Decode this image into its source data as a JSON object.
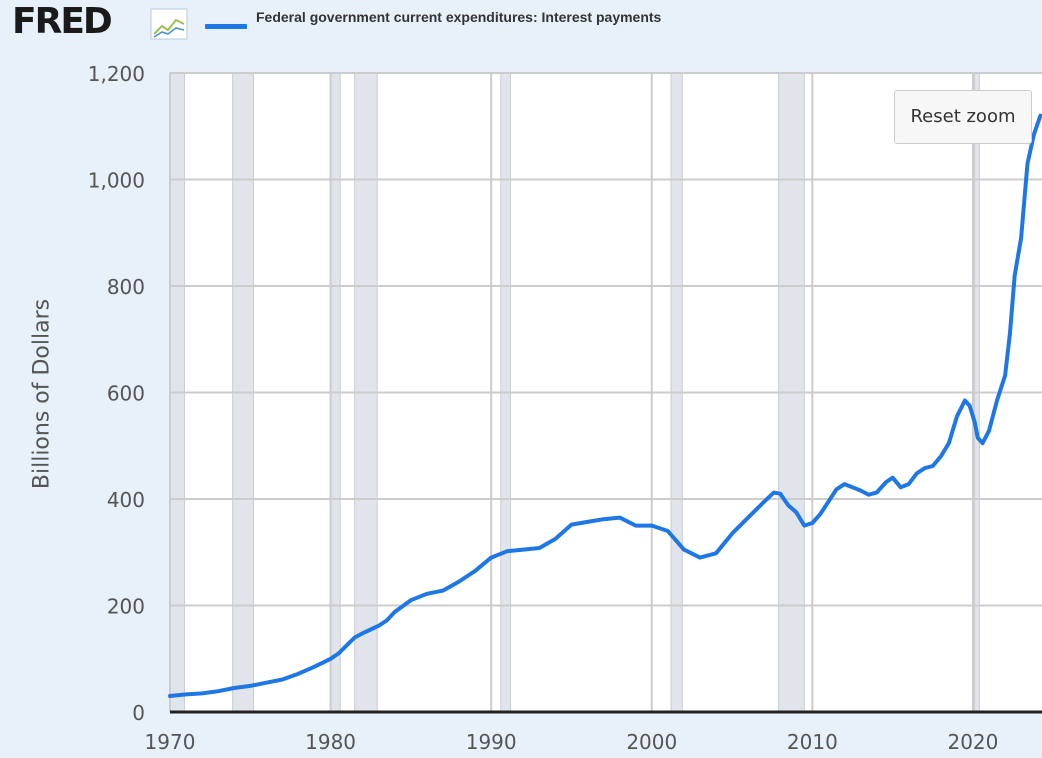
{
  "header": {
    "logo_text": "FRED",
    "logo_icon": "fred-chart-logo-icon",
    "legend_label": "Federal government current expenditures: Interest payments"
  },
  "controls": {
    "reset_zoom_label": "Reset zoom"
  },
  "colors": {
    "background": "#e8f0f9",
    "plot_background": "#ffffff",
    "series": "#1f77e6",
    "gridline": "#cccccc",
    "recession_shade": "#e1e5eb"
  },
  "chart_data": {
    "type": "line",
    "title": "",
    "xlabel": "",
    "ylabel": "Billions of Dollars",
    "xlim": [
      1970,
      2024.3
    ],
    "ylim": [
      0,
      1200
    ],
    "grid": true,
    "legend_position": "top-left",
    "y_ticks": [
      {
        "value": 0,
        "label": "0"
      },
      {
        "value": 200,
        "label": "200"
      },
      {
        "value": 400,
        "label": "400"
      },
      {
        "value": 600,
        "label": "600"
      },
      {
        "value": 800,
        "label": "800"
      },
      {
        "value": 1000,
        "label": "1,000"
      },
      {
        "value": 1200,
        "label": "1,200"
      }
    ],
    "x_ticks": [
      {
        "value": 1970,
        "label": "1970"
      },
      {
        "value": 1980,
        "label": "1980"
      },
      {
        "value": 1990,
        "label": "1990"
      },
      {
        "value": 2000,
        "label": "2000"
      },
      {
        "value": 2010,
        "label": "2010"
      },
      {
        "value": 2020,
        "label": "2020"
      }
    ],
    "recession_bands": [
      [
        1970.0,
        1970.9
      ],
      [
        1973.9,
        1975.2
      ],
      [
        1980.0,
        1980.6
      ],
      [
        1981.5,
        1982.9
      ],
      [
        1990.6,
        1991.2
      ],
      [
        2001.2,
        2001.9
      ],
      [
        2007.9,
        2009.5
      ],
      [
        2020.1,
        2020.4
      ]
    ],
    "series": [
      {
        "name": "Federal government current expenditures: Interest payments",
        "points": [
          [
            1970.0,
            30
          ],
          [
            1971.0,
            33
          ],
          [
            1972.0,
            35
          ],
          [
            1973.0,
            39
          ],
          [
            1974.0,
            45
          ],
          [
            1975.0,
            49
          ],
          [
            1976.0,
            55
          ],
          [
            1977.0,
            61
          ],
          [
            1978.0,
            72
          ],
          [
            1979.0,
            85
          ],
          [
            1980.0,
            100
          ],
          [
            1980.5,
            110
          ],
          [
            1981.0,
            125
          ],
          [
            1981.5,
            140
          ],
          [
            1982.0,
            148
          ],
          [
            1982.5,
            155
          ],
          [
            1983.0,
            162
          ],
          [
            1983.5,
            172
          ],
          [
            1984.0,
            188
          ],
          [
            1985.0,
            210
          ],
          [
            1986.0,
            222
          ],
          [
            1987.0,
            228
          ],
          [
            1988.0,
            245
          ],
          [
            1989.0,
            265
          ],
          [
            1990.0,
            290
          ],
          [
            1991.0,
            302
          ],
          [
            1992.0,
            305
          ],
          [
            1993.0,
            308
          ],
          [
            1994.0,
            325
          ],
          [
            1995.0,
            352
          ],
          [
            1996.0,
            357
          ],
          [
            1997.0,
            362
          ],
          [
            1998.0,
            365
          ],
          [
            1999.0,
            350
          ],
          [
            2000.0,
            350
          ],
          [
            2001.0,
            340
          ],
          [
            2002.0,
            305
          ],
          [
            2003.0,
            290
          ],
          [
            2004.0,
            298
          ],
          [
            2005.0,
            335
          ],
          [
            2006.0,
            365
          ],
          [
            2007.0,
            395
          ],
          [
            2007.6,
            412
          ],
          [
            2008.0,
            410
          ],
          [
            2008.5,
            388
          ],
          [
            2009.0,
            375
          ],
          [
            2009.5,
            350
          ],
          [
            2010.0,
            355
          ],
          [
            2010.5,
            372
          ],
          [
            2011.0,
            395
          ],
          [
            2011.5,
            418
          ],
          [
            2012.0,
            428
          ],
          [
            2012.5,
            422
          ],
          [
            2013.0,
            416
          ],
          [
            2013.5,
            408
          ],
          [
            2014.0,
            412
          ],
          [
            2014.6,
            432
          ],
          [
            2015.0,
            440
          ],
          [
            2015.5,
            422
          ],
          [
            2016.0,
            428
          ],
          [
            2016.5,
            448
          ],
          [
            2017.0,
            458
          ],
          [
            2017.5,
            462
          ],
          [
            2018.0,
            480
          ],
          [
            2018.5,
            505
          ],
          [
            2019.0,
            555
          ],
          [
            2019.5,
            585
          ],
          [
            2019.8,
            575
          ],
          [
            2020.1,
            545
          ],
          [
            2020.3,
            515
          ],
          [
            2020.6,
            505
          ],
          [
            2021.0,
            528
          ],
          [
            2021.5,
            585
          ],
          [
            2022.0,
            632
          ],
          [
            2022.3,
            710
          ],
          [
            2022.6,
            820
          ],
          [
            2023.0,
            890
          ],
          [
            2023.4,
            1030
          ],
          [
            2023.8,
            1085
          ],
          [
            2024.2,
            1120
          ]
        ]
      }
    ]
  }
}
